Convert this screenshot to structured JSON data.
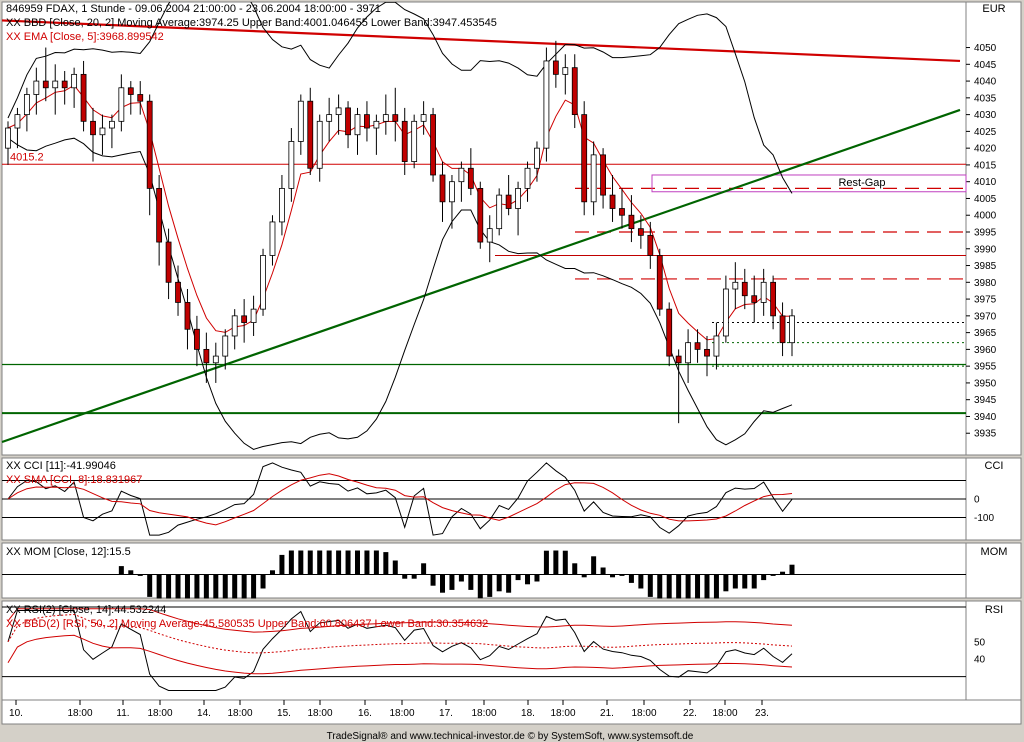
{
  "header": {
    "title": "846959  FDAX, 1 Stunde - 09.06.2004 21:00:00 - 23.06.2004 18:00:00 - 3971",
    "bb_legend": "XX BBD [Close, 20, 2] Moving Average:3974.25 Upper Band:4001.046455 Lower Band:3947.453545",
    "ema_legend": "XX EMA [Close, 5]:3968.899542",
    "currency": "EUR"
  },
  "annotations": {
    "level_label": "4015.2",
    "gap_label": "Rest-Gap"
  },
  "panels": {
    "cci": {
      "tag": "CCI",
      "legend1": "XX CCI [11]:-41.99046",
      "legend2": "XX SMA [CCI, 8]:18.831967",
      "ticks": [
        "0",
        "-100"
      ]
    },
    "mom": {
      "tag": "MOM",
      "legend1": "XX MOM [Close, 12]:15.5"
    },
    "rsi": {
      "tag": "RSI",
      "legend1": "XX RSI(2) [Close, 14]:44.532244",
      "legend2": "XX BBD(2) [RSI, 50, 2] Moving Average:45.580535 Upper Band:60.806437 Lower Band:30.354632",
      "ticks": [
        "50",
        "40"
      ]
    }
  },
  "footer": "TradeSignal® and www.technical-investor.de © by SystemSoft, www.systemsoft.de",
  "chart_data": {
    "type": "candlestick",
    "instrument": "FDAX",
    "timeframe": "1 Stunde",
    "y_ticks": [
      4050,
      4045,
      4040,
      4035,
      4030,
      4025,
      4020,
      4015,
      4010,
      4005,
      4000,
      3995,
      3990,
      3985,
      3980,
      3975,
      3970,
      3965,
      3960,
      3955,
      3950,
      3945,
      3940,
      3935
    ],
    "x_labels": [
      "10.",
      "18:00",
      "11.",
      "18:00",
      "14.",
      "18:00",
      "15.",
      "18:00",
      "16.",
      "18:00",
      "17.",
      "18:00",
      "18.",
      "18:00",
      "21.",
      "18:00",
      "22.",
      "18:00",
      "23."
    ],
    "ohlc": [
      [
        4020,
        4028,
        4015,
        4026
      ],
      [
        4026,
        4032,
        4020,
        4030
      ],
      [
        4030,
        4038,
        4025,
        4036
      ],
      [
        4036,
        4044,
        4030,
        4040
      ],
      [
        4040,
        4050,
        4034,
        4038
      ],
      [
        4038,
        4045,
        4030,
        4040
      ],
      [
        4040,
        4043,
        4033,
        4038
      ],
      [
        4038,
        4044,
        4032,
        4042
      ],
      [
        4042,
        4046,
        4025,
        4028
      ],
      [
        4028,
        4032,
        4016,
        4024
      ],
      [
        4024,
        4030,
        4018,
        4026
      ],
      [
        4026,
        4030,
        4020,
        4028
      ],
      [
        4028,
        4042,
        4025,
        4038
      ],
      [
        4038,
        4040,
        4030,
        4036
      ],
      [
        4036,
        4040,
        4030,
        4034
      ],
      [
        4034,
        4036,
        4000,
        4008
      ],
      [
        4008,
        4012,
        3985,
        3992
      ],
      [
        3992,
        3996,
        3975,
        3980
      ],
      [
        3980,
        3985,
        3970,
        3974
      ],
      [
        3974,
        3978,
        3960,
        3966
      ],
      [
        3966,
        3970,
        3955,
        3960
      ],
      [
        3960,
        3965,
        3950,
        3956
      ],
      [
        3956,
        3962,
        3950,
        3958
      ],
      [
        3958,
        3966,
        3954,
        3964
      ],
      [
        3964,
        3972,
        3960,
        3970
      ],
      [
        3970,
        3975,
        3962,
        3968
      ],
      [
        3968,
        3976,
        3964,
        3972
      ],
      [
        3972,
        3990,
        3970,
        3988
      ],
      [
        3988,
        4000,
        3985,
        3998
      ],
      [
        3998,
        4012,
        3994,
        4008
      ],
      [
        4008,
        4026,
        4004,
        4022
      ],
      [
        4022,
        4036,
        4018,
        4034
      ],
      [
        4034,
        4038,
        4012,
        4014
      ],
      [
        4014,
        4030,
        4010,
        4028
      ],
      [
        4028,
        4035,
        4022,
        4030
      ],
      [
        4030,
        4036,
        4024,
        4032
      ],
      [
        4032,
        4034,
        4020,
        4024
      ],
      [
        4024,
        4032,
        4018,
        4030
      ],
      [
        4030,
        4034,
        4022,
        4026
      ],
      [
        4026,
        4030,
        4018,
        4028
      ],
      [
        4028,
        4036,
        4024,
        4030
      ],
      [
        4030,
        4038,
        4022,
        4028
      ],
      [
        4028,
        4032,
        4012,
        4016
      ],
      [
        4016,
        4030,
        4014,
        4028
      ],
      [
        4028,
        4034,
        4024,
        4030
      ],
      [
        4030,
        4032,
        4010,
        4012
      ],
      [
        4012,
        4016,
        3998,
        4004
      ],
      [
        4004,
        4012,
        3996,
        4010
      ],
      [
        4010,
        4016,
        4004,
        4014
      ],
      [
        4014,
        4020,
        4006,
        4008
      ],
      [
        4008,
        4010,
        3990,
        3992
      ],
      [
        3992,
        4000,
        3986,
        3996
      ],
      [
        3996,
        4008,
        3994,
        4006
      ],
      [
        4006,
        4012,
        4000,
        4002
      ],
      [
        4002,
        4010,
        3994,
        4008
      ],
      [
        4008,
        4016,
        4004,
        4014
      ],
      [
        4014,
        4022,
        4010,
        4020
      ],
      [
        4020,
        4050,
        4016,
        4046
      ],
      [
        4046,
        4052,
        4038,
        4042
      ],
      [
        4042,
        4048,
        4036,
        4044
      ],
      [
        4044,
        4048,
        4026,
        4030
      ],
      [
        4030,
        4034,
        4000,
        4004
      ],
      [
        4004,
        4022,
        4000,
        4018
      ],
      [
        4018,
        4020,
        4002,
        4006
      ],
      [
        4006,
        4012,
        3998,
        4002
      ],
      [
        4002,
        4008,
        3996,
        4000
      ],
      [
        4000,
        4006,
        3992,
        3996
      ],
      [
        3996,
        4000,
        3990,
        3994
      ],
      [
        3994,
        3998,
        3984,
        3988
      ],
      [
        3988,
        3990,
        3970,
        3972
      ],
      [
        3972,
        3974,
        3955,
        3958
      ],
      [
        3958,
        3960,
        3938,
        3956
      ],
      [
        3956,
        3966,
        3950,
        3962
      ],
      [
        3962,
        3966,
        3956,
        3960
      ],
      [
        3960,
        3964,
        3952,
        3958
      ],
      [
        3958,
        3968,
        3954,
        3964
      ],
      [
        3964,
        3982,
        3962,
        3978
      ],
      [
        3978,
        3986,
        3972,
        3980
      ],
      [
        3980,
        3984,
        3972,
        3976
      ],
      [
        3976,
        3982,
        3968,
        3974
      ],
      [
        3974,
        3984,
        3970,
        3980
      ],
      [
        3980,
        3982,
        3966,
        3970
      ],
      [
        3970,
        3974,
        3958,
        3962
      ],
      [
        3962,
        3972,
        3958,
        3970
      ]
    ],
    "lines": {
      "resistance": {
        "from": [
          0,
          4058
        ],
        "to": [
          84,
          4048
        ]
      },
      "support": {
        "from": [
          0,
          3933
        ],
        "to": [
          84,
          4015
        ]
      },
      "levels": [
        4015.2,
        3988,
        3955.5,
        3941
      ],
      "dashed_levels": [
        4008,
        3995,
        3981
      ],
      "dotted_levels": [
        3968,
        3962,
        3955
      ],
      "gap_zone": [
        4007,
        4012
      ]
    },
    "cci_range": [
      -200,
      200
    ],
    "mom_range": [
      -30,
      30
    ],
    "rsi_range": [
      20,
      70
    ]
  }
}
